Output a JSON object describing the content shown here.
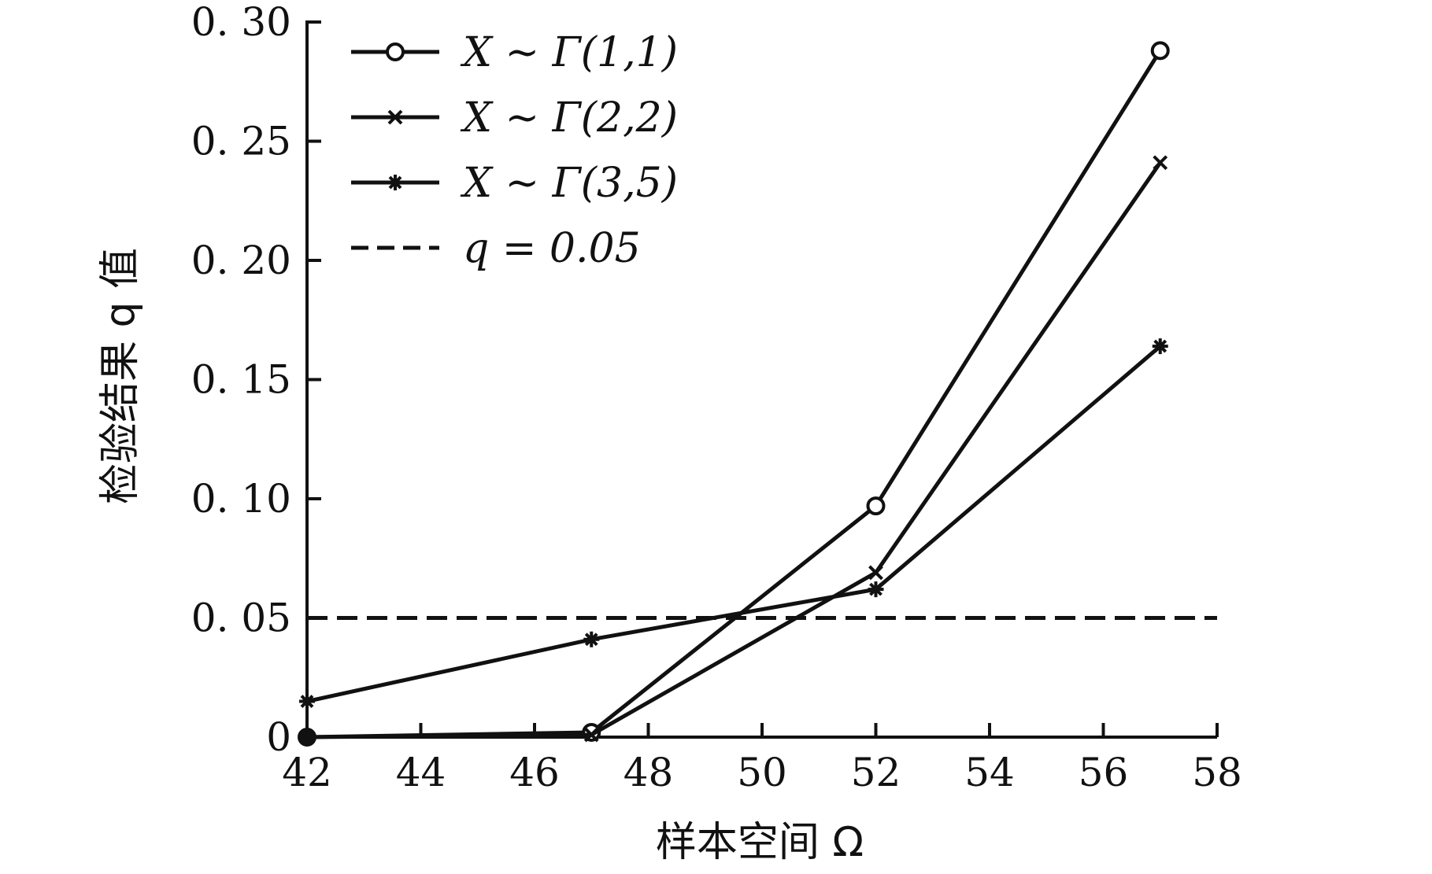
{
  "chart_data": {
    "type": "line",
    "xlabel": "样本空间 Ω",
    "ylabel": "检验结果 q 值",
    "xlim": [
      42,
      58
    ],
    "ylim": [
      0,
      0.3
    ],
    "x_ticks": [
      "42",
      "44",
      "46",
      "48",
      "50",
      "52",
      "54",
      "56",
      "58"
    ],
    "x_tick_values": [
      42,
      44,
      46,
      48,
      50,
      52,
      54,
      56,
      58
    ],
    "y_ticks": [
      "0",
      "0. 05",
      "0. 10",
      "0. 15",
      "0. 20",
      "0. 25",
      "0. 30"
    ],
    "y_tick_values": [
      0,
      0.05,
      0.1,
      0.15,
      0.2,
      0.25,
      0.3
    ],
    "grid": false,
    "legend_position": "top-left",
    "x": [
      42,
      47,
      52,
      57
    ],
    "series": [
      {
        "name": "X ~ Γ(1,1)",
        "marker": "circle",
        "values": [
          0.0,
          0.002,
          0.097,
          0.288
        ]
      },
      {
        "name": "X ~ Γ(2,2)",
        "marker": "x",
        "values": [
          0.0,
          0.001,
          0.069,
          0.241
        ]
      },
      {
        "name": "X ~ Γ(3,5)",
        "marker": "asterisk",
        "values": [
          0.015,
          0.041,
          0.062,
          0.164
        ]
      }
    ],
    "reference_lines": [
      {
        "name": "q = 0.05",
        "y": 0.05,
        "style": "dashed"
      }
    ],
    "line_color": "#111111"
  }
}
